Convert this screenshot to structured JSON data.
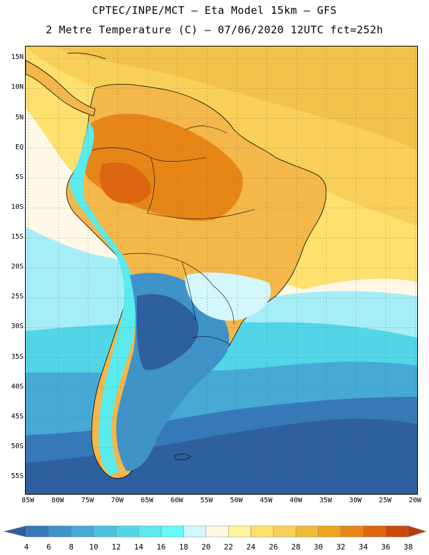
{
  "header": {
    "title_line1": "CPTEC/INPE/MCT –  Eta Model 15km – GFS",
    "title_line2": "2 Metre Temperature (C) – 07/06/2020 12UTC fct=252h"
  },
  "map": {
    "latitude_labels": [
      "15N",
      "10N",
      "5N",
      "EQ",
      "5S",
      "10S",
      "15S",
      "20S",
      "25S",
      "30S",
      "35S",
      "40S",
      "45S",
      "50S",
      "55S"
    ],
    "latitude_values": [
      15,
      10,
      5,
      0,
      -5,
      -10,
      -15,
      -20,
      -25,
      -30,
      -35,
      -40,
      -45,
      -50,
      -55
    ],
    "longitude_labels": [
      "85W",
      "80W",
      "75W",
      "70W",
      "65W",
      "60W",
      "55W",
      "50W",
      "45W",
      "40W",
      "35W",
      "30W",
      "25W",
      "20W"
    ],
    "longitude_values": [
      -85,
      -80,
      -75,
      -70,
      -65,
      -60,
      -55,
      -50,
      -45,
      -40,
      -35,
      -30,
      -25,
      -20
    ],
    "extent": {
      "lon_min": -85.5,
      "lon_max": -19.5,
      "lat_min": -58,
      "lat_max": 17
    },
    "gridlines": "dotted"
  },
  "colorbar": {
    "labels": [
      "4",
      "6",
      "8",
      "10",
      "12",
      "14",
      "16",
      "18",
      "20",
      "22",
      "24",
      "26",
      "28",
      "30",
      "32",
      "34",
      "36",
      "38"
    ],
    "colors": [
      "#2e5f9e",
      "#3679b8",
      "#3f93c9",
      "#46a9d6",
      "#4cc0df",
      "#52d6e7",
      "#5aebee",
      "#66fafa",
      "#d3f7fb",
      "#fff8e6",
      "#fff59a",
      "#fde06e",
      "#f8cf58",
      "#f1b93a",
      "#eda51b",
      "#e78617",
      "#dd6610",
      "#c94a0b",
      "#b83c0d"
    ],
    "unit": "C"
  }
}
